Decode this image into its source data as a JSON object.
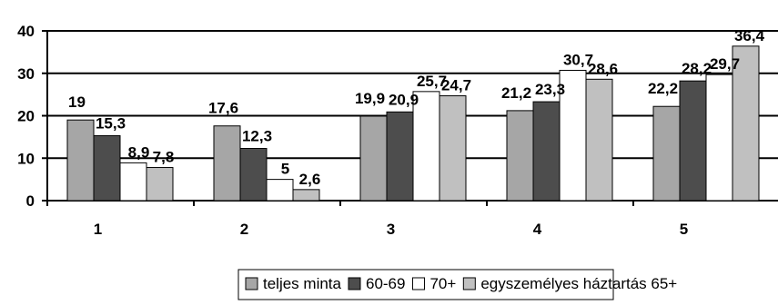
{
  "chart_data": {
    "type": "bar",
    "categories": [
      "1",
      "2",
      "3",
      "4",
      "5"
    ],
    "series": [
      {
        "name": "teljes minta",
        "values": [
          19,
          17.6,
          19.9,
          21.2,
          22.2
        ],
        "color": "#a6a6a6"
      },
      {
        "name": "60-69",
        "values": [
          15.3,
          12.3,
          20.9,
          23.3,
          28.2
        ],
        "color": "#4d4d4d"
      },
      {
        "name": "70+",
        "values": [
          8.9,
          5,
          25.7,
          30.7,
          29.7
        ],
        "color": "#ffffff"
      },
      {
        "name": "egyszemélyes háztartás 65+",
        "values": [
          7.8,
          2.6,
          24.7,
          28.6,
          36.4
        ],
        "color": "#c0c0c0"
      }
    ],
    "value_labels": [
      [
        "19",
        "17,6",
        "19,9",
        "21,2",
        "22,2"
      ],
      [
        "15,3",
        "12,3",
        "20,9",
        "23,3",
        "28,2"
      ],
      [
        "8,9",
        "5",
        "25,7",
        "30,7",
        "29,7"
      ],
      [
        "7,8",
        "2,6",
        "24,7",
        "28,6",
        "36,4"
      ]
    ],
    "y_ticks": [
      "0",
      "10",
      "20",
      "30",
      "40"
    ],
    "ylim": [
      0,
      40
    ],
    "grid": true,
    "legend_position": "bottom"
  }
}
